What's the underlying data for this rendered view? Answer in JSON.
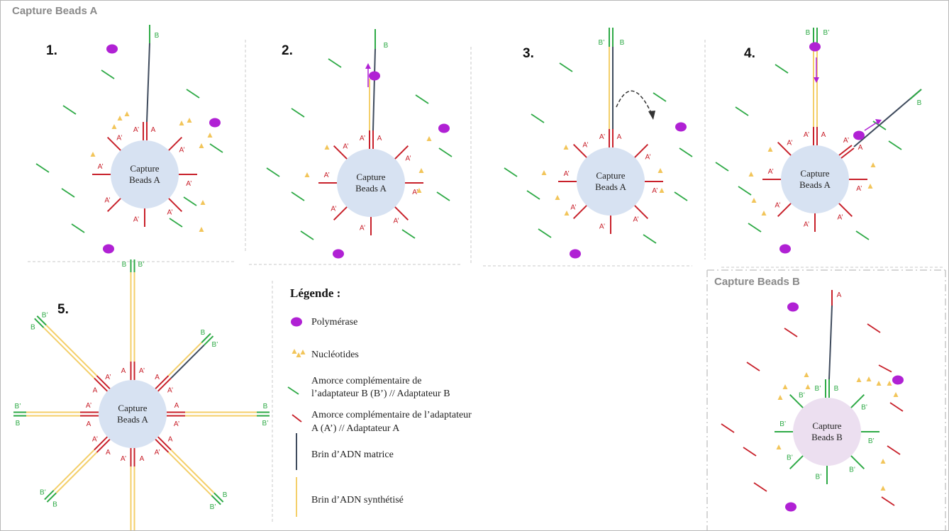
{
  "headers": {
    "capture_a": "Capture Beads A",
    "capture_b": "Capture Beads B"
  },
  "steps": [
    "1.",
    "2.",
    "3.",
    "4.",
    "5."
  ],
  "bead_labels": {
    "a_line1": "Capture",
    "a_line2": "Beads A",
    "b_line1": "Capture",
    "b_line2": "Beads B"
  },
  "strand_labels": {
    "a": "A",
    "a_prime": "A’",
    "b": "B",
    "b_prime": "B’"
  },
  "legend": {
    "title": "Légende :",
    "items": [
      {
        "icon": "polymerase-icon",
        "lines": [
          "Polymérase"
        ]
      },
      {
        "icon": "nucleotides-icon",
        "lines": [
          "Nucléotides"
        ]
      },
      {
        "icon": "primer-b-icon",
        "lines": [
          "Amorce complémentaire de",
          "l’adaptateur B (B’) // Adaptateur B"
        ]
      },
      {
        "icon": "primer-a-icon",
        "lines": [
          "Amorce complémentaire de l’adaptateur",
          "A  (A’) // Adaptateur A"
        ]
      },
      {
        "icon": "template-strand-icon",
        "lines": [
          "Brin d’ADN matrice"
        ]
      },
      {
        "icon": "synthesized-strand-icon",
        "lines": [
          "Brin d’ADN synthétisé"
        ]
      }
    ]
  },
  "colors": {
    "bead_a": "#d7e2f2",
    "bead_b": "#ecdff0",
    "primer_a": "#c8202a",
    "primer_b": "#2eaa46",
    "template": "#3f4b5d",
    "synthesized": "#f4cf6a",
    "polymerase": "#b021d4",
    "nucleotide": "#f2c55a",
    "label_a": "#c8202a",
    "label_b": "#2eaa46"
  }
}
